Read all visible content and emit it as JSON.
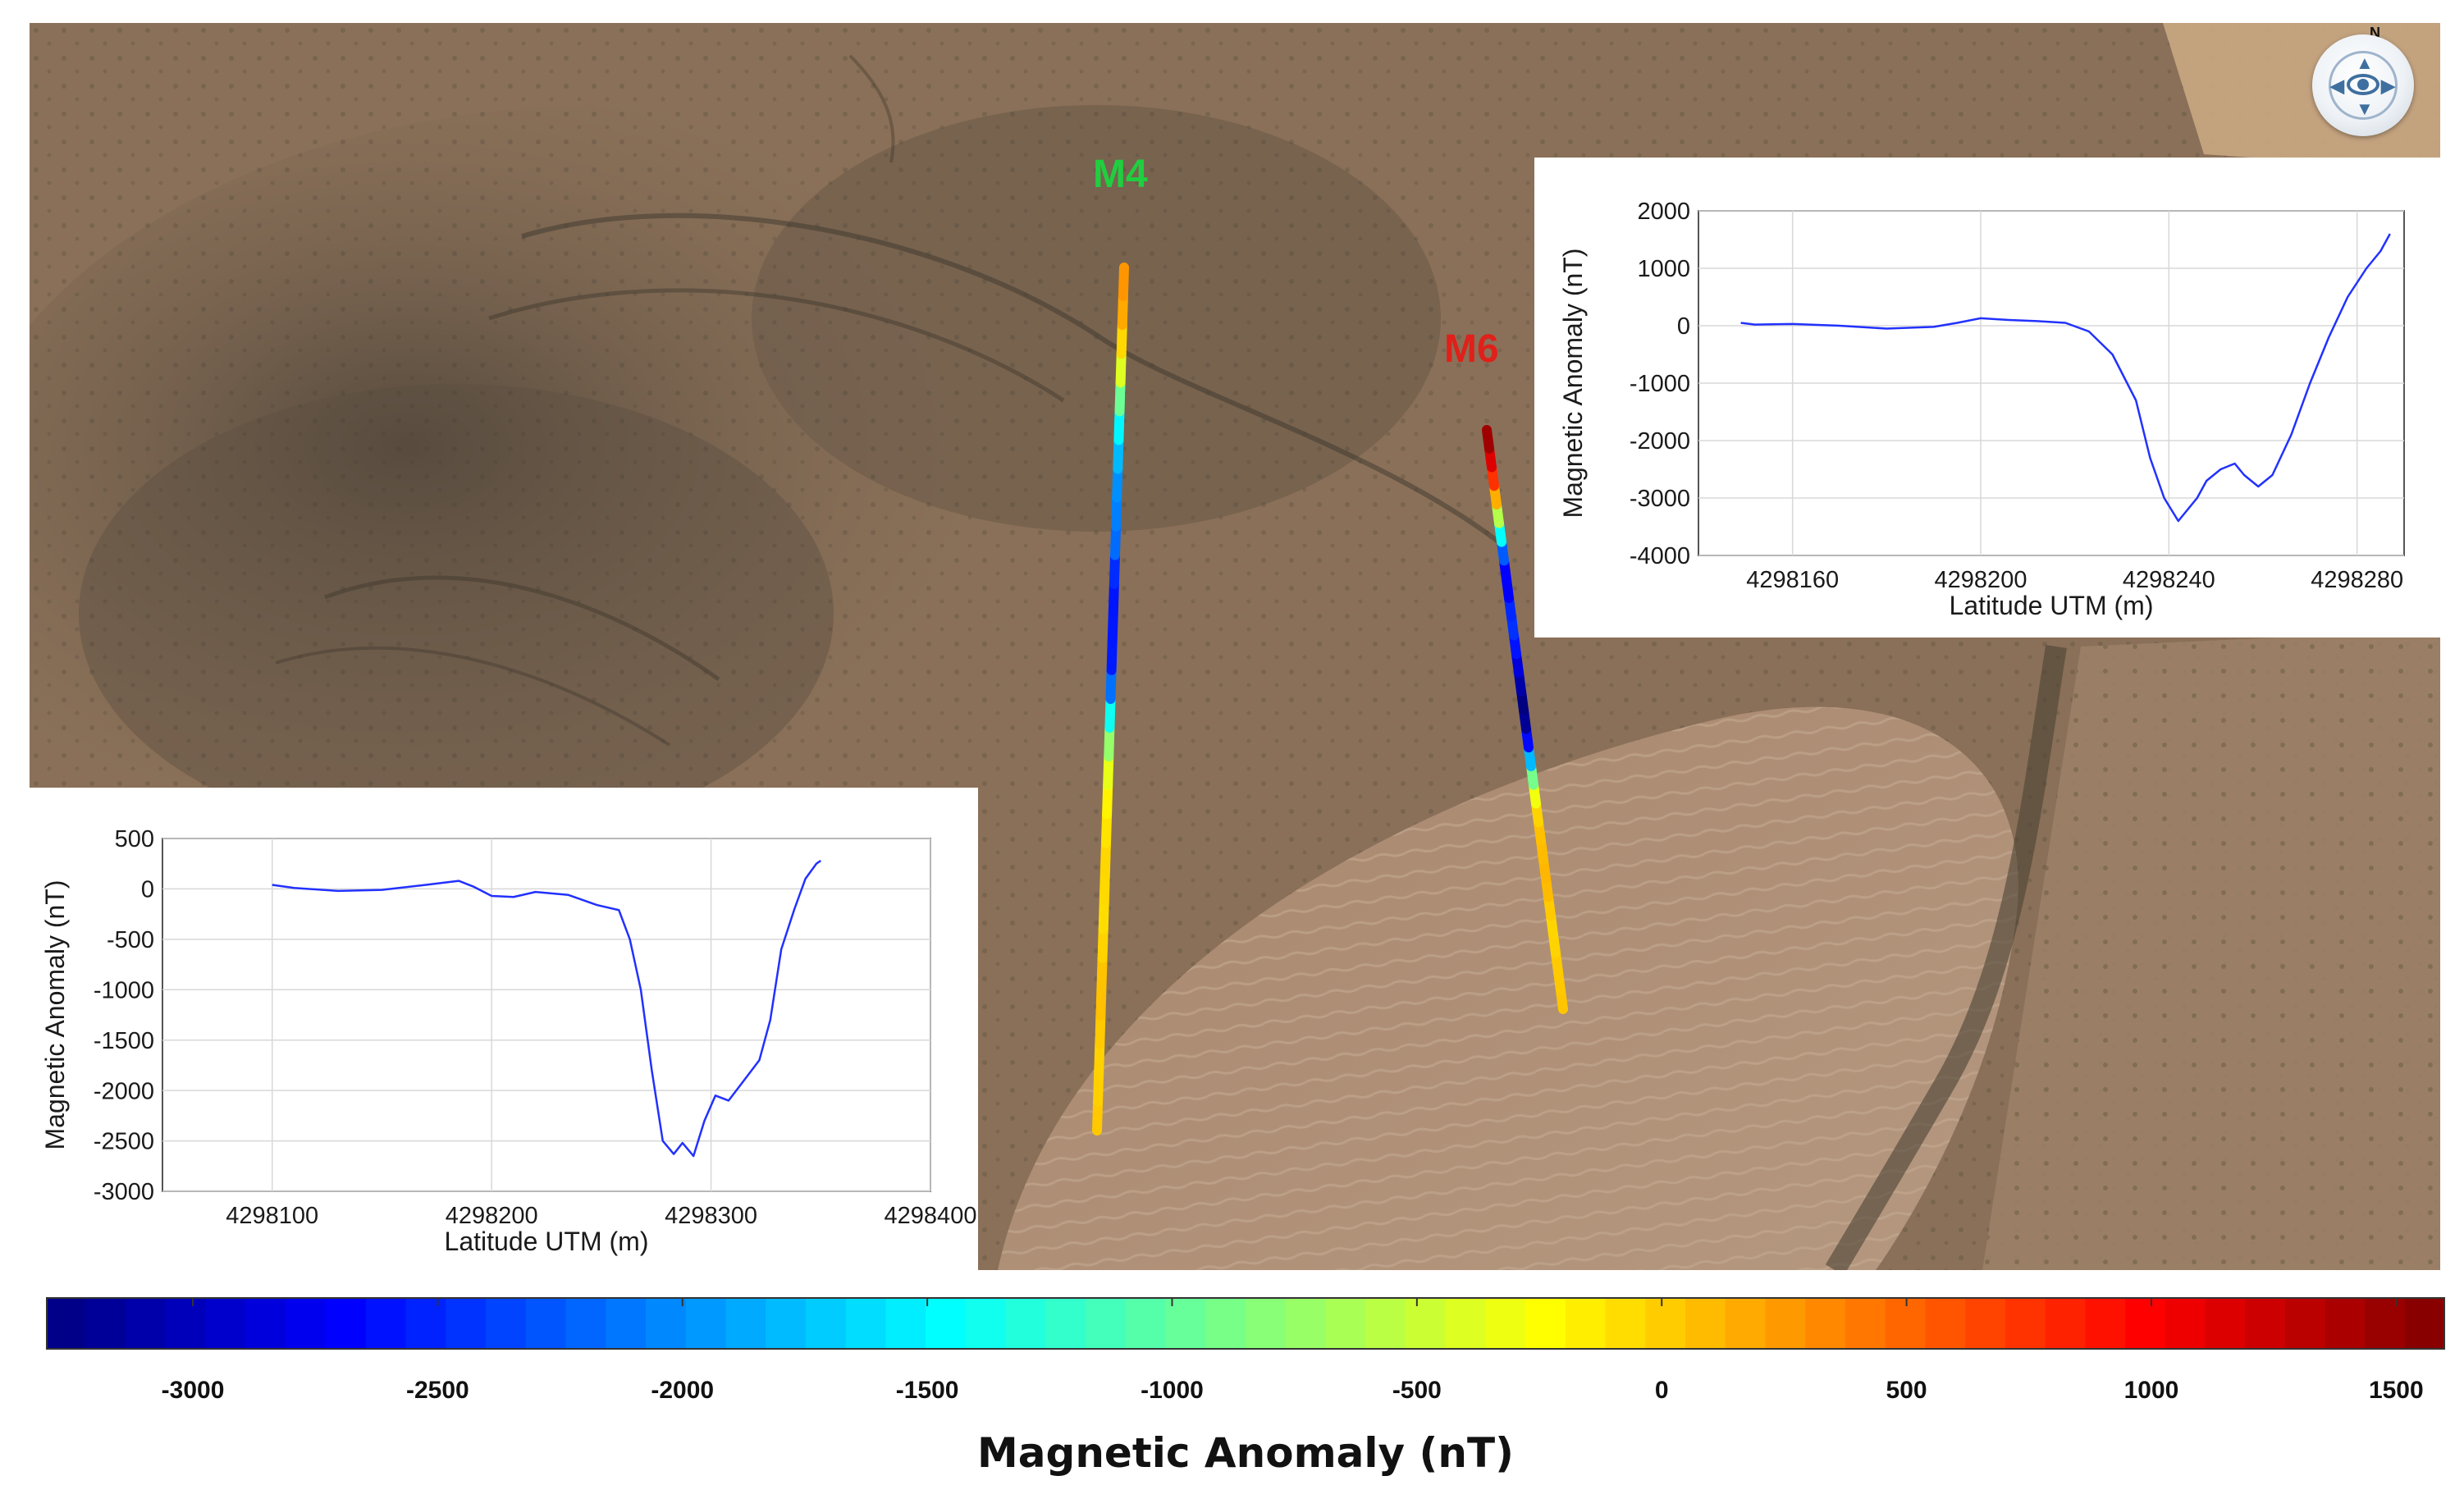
{
  "colors": {
    "line": "#2231ff",
    "m4_label": "#1fcf3f",
    "m6_label": "#e0201a"
  },
  "map": {
    "north_label": "N",
    "nav_icon": "navigation-compass-icon",
    "profiles": [
      {
        "label": "M4",
        "color": "#1fcf3f"
      },
      {
        "label": "M6",
        "color": "#e0201a"
      }
    ]
  },
  "colorbar": {
    "title": "Magnetic Anomaly (nT)",
    "min": -3300,
    "max": 1600,
    "ticks": [
      "-3000",
      "-2500",
      "-2000",
      "-1500",
      "-1000",
      "-500",
      "0",
      "500",
      "1000",
      "1500"
    ],
    "tick_values": [
      -3000,
      -2500,
      -2000,
      -1500,
      -1000,
      -500,
      0,
      500,
      1000,
      1500
    ],
    "colormap": "jet"
  },
  "chart_data": [
    {
      "id": "M6",
      "type": "line",
      "xlabel": "Latitude UTM  (m)",
      "ylabel": "Magnetic Anomaly  (nT)",
      "xlim": [
        4298140,
        4298290
      ],
      "ylim": [
        -4000,
        2000
      ],
      "xticks": [
        4298160,
        4298200,
        4298240,
        4298280
      ],
      "yticks": [
        -4000,
        -3000,
        -2000,
        -1000,
        0,
        1000,
        2000
      ],
      "grid": true,
      "series": [
        {
          "name": "M6",
          "x": [
            4298149,
            4298152,
            4298160,
            4298170,
            4298180,
            4298190,
            4298195,
            4298200,
            4298206,
            4298212,
            4298218,
            4298223,
            4298228,
            4298233,
            4298236,
            4298239,
            4298242,
            4298244,
            4298246,
            4298248,
            4298251,
            4298254,
            4298256,
            4298259,
            4298262,
            4298266,
            4298270,
            4298274,
            4298278,
            4298282,
            4298285,
            4298287
          ],
          "y": [
            50,
            20,
            30,
            0,
            -50,
            -20,
            50,
            130,
            100,
            80,
            50,
            -100,
            -500,
            -1300,
            -2300,
            -3000,
            -3400,
            -3200,
            -3000,
            -2700,
            -2500,
            -2400,
            -2600,
            -2800,
            -2600,
            -1900,
            -1000,
            -200,
            500,
            1000,
            1300,
            1600
          ]
        }
      ]
    },
    {
      "id": "M4",
      "type": "line",
      "xlabel": "Latitude UTM  (m)",
      "ylabel": "Magnetic Anomaly  (nT)",
      "xlim": [
        4298050,
        4298400
      ],
      "ylim": [
        -3000,
        500
      ],
      "xticks": [
        4298100,
        4298200,
        4298300,
        4298400
      ],
      "yticks": [
        -3000,
        -2500,
        -2000,
        -1500,
        -1000,
        -500,
        0,
        500
      ],
      "grid": true,
      "series": [
        {
          "name": "M4",
          "x": [
            4298100,
            4298110,
            4298130,
            4298150,
            4298170,
            4298185,
            4298192,
            4298200,
            4298210,
            4298220,
            4298235,
            4298248,
            4298258,
            4298263,
            4298268,
            4298273,
            4298278,
            4298283,
            4298287,
            4298292,
            4298297,
            4298302,
            4298308,
            4298315,
            4298322,
            4298327,
            4298332,
            4298338,
            4298343,
            4298348,
            4298350
          ],
          "y": [
            40,
            10,
            -20,
            -10,
            40,
            80,
            20,
            -70,
            -80,
            -30,
            -60,
            -160,
            -210,
            -500,
            -1000,
            -1800,
            -2500,
            -2630,
            -2520,
            -2650,
            -2300,
            -2050,
            -2100,
            -1900,
            -1700,
            -1300,
            -600,
            -200,
            100,
            250,
            280
          ]
        }
      ]
    }
  ]
}
